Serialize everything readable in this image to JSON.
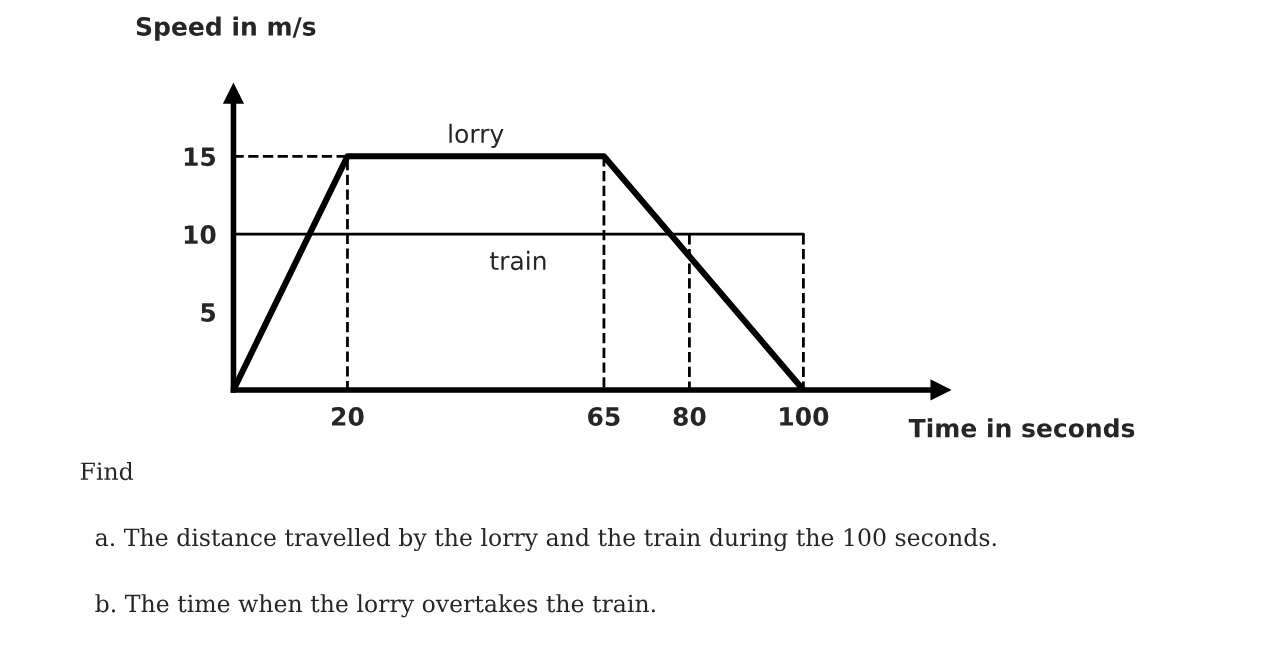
{
  "chart_data": {
    "type": "line",
    "xlabel": "Time in seconds",
    "ylabel": "Speed in m/s",
    "xlim": [
      0,
      124
    ],
    "ylim": [
      0,
      19
    ],
    "xticks": [
      20,
      65,
      80,
      100
    ],
    "yticks": [
      5,
      10,
      15
    ],
    "grid": false,
    "legend": false,
    "marker": "none",
    "series": [
      {
        "name": "lorry",
        "color": "#000000",
        "x": [
          0,
          20,
          65,
          100
        ],
        "values": [
          0,
          15,
          15,
          0
        ],
        "line_style": "solid"
      },
      {
        "name": "train",
        "color": "#000000",
        "x": [
          0,
          100
        ],
        "values": [
          10,
          10
        ],
        "line_style": "solid"
      },
      {
        "color": "#000000",
        "x": [
          0,
          20,
          20
        ],
        "values": [
          15,
          15,
          0
        ],
        "line_style": "dashed"
      },
      {
        "color": "#000000",
        "x": [
          65,
          65
        ],
        "values": [
          15,
          0
        ],
        "line_style": "dashed"
      },
      {
        "color": "#000000",
        "x": [
          80,
          80
        ],
        "values": [
          10,
          0
        ],
        "line_style": "dashed"
      },
      {
        "color": "#000000",
        "x": [
          100,
          100
        ],
        "values": [
          10,
          0
        ],
        "line_style": "dashed"
      }
    ],
    "annotations": [
      "Find",
      "a. The distance travelled by the lorry and the train during the 100 seconds.",
      "b. The time when the lorry overtakes the train."
    ]
  }
}
